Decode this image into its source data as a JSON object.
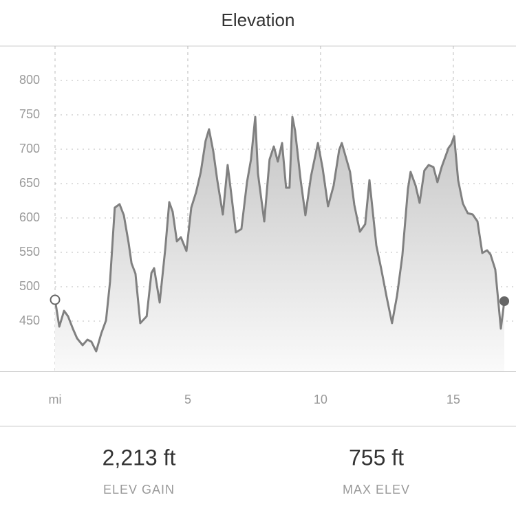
{
  "chart_data": {
    "type": "area",
    "title": "Elevation",
    "x": [
      0,
      0.16,
      0.34,
      0.49,
      0.67,
      0.83,
      1.04,
      1.22,
      1.37,
      1.55,
      1.74,
      1.92,
      2.07,
      2.25,
      2.43,
      2.59,
      2.77,
      2.88,
      3.03,
      3.21,
      3.45,
      3.63,
      3.73,
      3.94,
      4.15,
      4.3,
      4.43,
      4.59,
      4.74,
      4.95,
      5.13,
      5.31,
      5.49,
      5.67,
      5.8,
      5.96,
      6.11,
      6.32,
      6.5,
      6.63,
      6.81,
      7.02,
      7.23,
      7.38,
      7.54,
      7.64,
      7.88,
      8.08,
      8.24,
      8.39,
      8.55,
      8.7,
      8.83,
      8.94,
      9.04,
      9.25,
      9.43,
      9.64,
      9.9,
      10.08,
      10.28,
      10.49,
      10.7,
      10.8,
      11.11,
      11.27,
      11.48,
      11.68,
      11.84,
      12.1,
      12.28,
      12.49,
      12.69,
      12.88,
      13.08,
      13.29,
      13.39,
      13.58,
      13.73,
      13.91,
      14.07,
      14.25,
      14.4,
      14.56,
      14.82,
      14.92,
      15.03,
      15.18,
      15.36,
      15.54,
      15.73,
      15.91,
      16.09,
      16.27,
      16.4,
      16.58,
      16.79,
      16.92
    ],
    "y": [
      481,
      442,
      465,
      457,
      439,
      425,
      415,
      423,
      420,
      406,
      432,
      451,
      507,
      615,
      620,
      604,
      564,
      534,
      519,
      447,
      457,
      520,
      527,
      477,
      555,
      623,
      609,
      566,
      572,
      552,
      615,
      637,
      667,
      712,
      729,
      697,
      655,
      605,
      677,
      637,
      579,
      584,
      652,
      685,
      747,
      665,
      595,
      685,
      704,
      682,
      709,
      644,
      644,
      747,
      727,
      655,
      604,
      661,
      709,
      672,
      617,
      647,
      699,
      709,
      667,
      619,
      580,
      591,
      655,
      560,
      527,
      485,
      447,
      487,
      545,
      642,
      667,
      647,
      622,
      669,
      677,
      674,
      652,
      674,
      702,
      707,
      719,
      655,
      621,
      607,
      605,
      595,
      549,
      553,
      547,
      525,
      439,
      479
    ],
    "color": "#808080",
    "xlim": [
      0,
      17.36
    ],
    "ylim": [
      377,
      850
    ],
    "xticks": [
      {
        "value": 0,
        "label": "mi"
      },
      5,
      10,
      15
    ],
    "yticks": [
      450,
      500,
      550,
      600,
      650,
      700,
      750,
      800
    ],
    "grid": true
  },
  "stats": [
    {
      "value": "2,213 ft",
      "label": "ELEV GAIN"
    },
    {
      "value": "755 ft",
      "label": "MAX ELEV"
    }
  ]
}
